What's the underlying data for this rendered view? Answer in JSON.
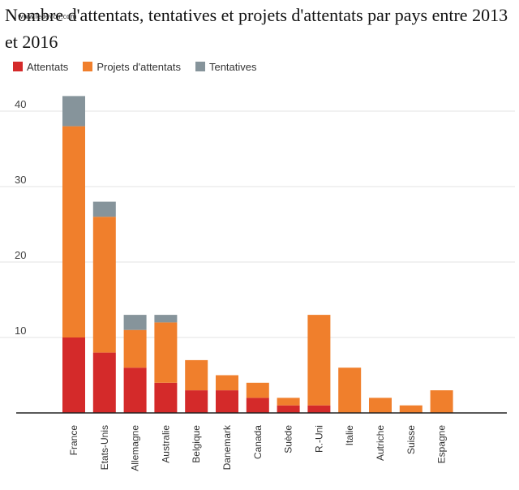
{
  "title": "Nombre d'attentats, tentatives et projets d'attentats par pays entre 2013 et 2016",
  "watermark": "www.ledevoir.com",
  "colors": {
    "attentats": "#d42a2a",
    "projets": "#f07f2c",
    "tentatives": "#86949b",
    "grid": "#e3e3e3",
    "axis": "#222222"
  },
  "chart_data": {
    "type": "bar",
    "stacked": true,
    "title": "Nombre d'attentats, tentatives et projets d'attentats par pays entre 2013 et 2016",
    "xlabel": "",
    "ylabel": "",
    "ylim": [
      0,
      42
    ],
    "yticks": [
      10,
      20,
      30,
      40
    ],
    "grid": true,
    "legend_position": "top-left",
    "categories": [
      "France",
      "Etats-Unis",
      "Allemagne",
      "Australie",
      "Belgique",
      "Danemark",
      "Canada",
      "Suède",
      "R.-Uni",
      "Italie",
      "Autriche",
      "Suisse",
      "Espagne"
    ],
    "series": [
      {
        "name": "Attentats",
        "color": "#d42a2a",
        "values": [
          10,
          8,
          6,
          4,
          3,
          3,
          2,
          1,
          1,
          0,
          0,
          0,
          0
        ]
      },
      {
        "name": "Projets d'attentats",
        "color": "#f07f2c",
        "values": [
          28,
          18,
          5,
          8,
          4,
          2,
          2,
          1,
          12,
          6,
          2,
          1,
          3
        ]
      },
      {
        "name": "Tentatives",
        "color": "#86949b",
        "values": [
          4,
          2,
          2,
          1,
          0,
          0,
          0,
          0,
          0,
          0,
          0,
          0,
          0
        ]
      }
    ]
  }
}
